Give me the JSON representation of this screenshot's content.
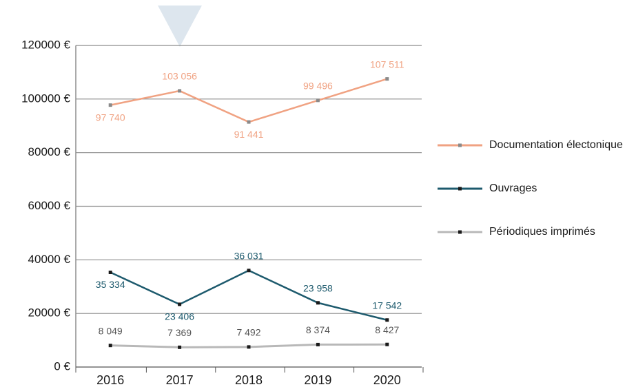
{
  "chart_data": {
    "type": "line",
    "categories": [
      "2016",
      "2017",
      "2018",
      "2019",
      "2020"
    ],
    "series": [
      {
        "name": "Documentation électonique",
        "color": "#f0a282",
        "marker_color": "#8a8a8a",
        "values": [
          97740,
          103056,
          91441,
          99496,
          107511
        ],
        "value_labels": [
          "97 740",
          "103 056",
          "91 441",
          "99 496",
          "107 511"
        ]
      },
      {
        "name": "Ouvrages",
        "color": "#1d5a6d",
        "marker_color": "#1a1a1a",
        "values": [
          35334,
          23406,
          36031,
          23958,
          17542
        ],
        "value_labels": [
          "35 334",
          "23 406",
          "36 031",
          "23 958",
          "17 542"
        ]
      },
      {
        "name": "Périodiques imprimés",
        "color": "#b8b8b8",
        "marker_color": "#1a1a1a",
        "values": [
          8049,
          7369,
          7492,
          8374,
          8427
        ],
        "value_labels": [
          "8 049",
          "7 369",
          "7 492",
          "8 374",
          "8 427"
        ]
      }
    ],
    "ylim": [
      0,
      120000
    ],
    "yticks": [
      {
        "value": 0,
        "label": "0 €"
      },
      {
        "value": 20000,
        "label": "20000 €"
      },
      {
        "value": 40000,
        "label": "40000 €"
      },
      {
        "value": 60000,
        "label": "60000 €"
      },
      {
        "value": 80000,
        "label": "80000 €"
      },
      {
        "value": 100000,
        "label": "100000 €"
      },
      {
        "value": 120000,
        "label": "120000 €"
      }
    ],
    "grid": true,
    "legend": "right"
  }
}
